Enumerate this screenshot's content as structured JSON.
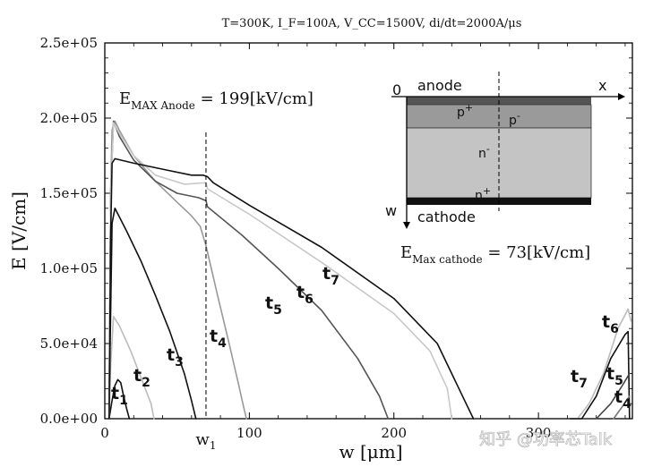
{
  "chart_data": {
    "type": "line",
    "title": "T=300K, I_F=100A, V_CC=1500V, di/dt=2000A/μs",
    "xlabel": "w [μm]",
    "ylabel": "E [V/cm]",
    "xlim": [
      0,
      365
    ],
    "ylim": [
      0,
      250000
    ],
    "x_ticks": [
      0,
      100,
      200,
      300
    ],
    "y_ticks": [
      0,
      50000,
      100000,
      150000,
      200000,
      250000
    ],
    "y_tick_labels": [
      "0.0e+00",
      "5.0e+04",
      "1.0e+05",
      "1.5e+05",
      "2.0e+05",
      "2.5e+05"
    ],
    "x_tick_labels": [
      "0",
      "100",
      "200",
      "300"
    ],
    "w1_label": "w",
    "w1_sub": "1",
    "w1_x": 70,
    "grid": false,
    "annotations": {
      "anode_pre": "E",
      "anode_sub": "MAX Anode",
      "anode_post": " = 199[kV/cm]",
      "cathode_pre": "E",
      "cathode_sub": "Max cathode",
      "cathode_post": " = 73[kV/cm]"
    },
    "series": [
      {
        "label": "t",
        "sub": "1",
        "color": "#111111",
        "width": 1.6,
        "points": [
          [
            3,
            0
          ],
          [
            5,
            12000
          ],
          [
            7,
            22000
          ],
          [
            9,
            26000
          ],
          [
            11,
            24000
          ],
          [
            13,
            15000
          ],
          [
            15,
            7000
          ],
          [
            17,
            0
          ]
        ]
      },
      {
        "label": "t",
        "sub": "2",
        "color": "#bbbbbb",
        "width": 1.6,
        "points": [
          [
            3,
            0
          ],
          [
            4,
            35000
          ],
          [
            6,
            68000
          ],
          [
            10,
            62000
          ],
          [
            18,
            45000
          ],
          [
            26,
            25000
          ],
          [
            32,
            10000
          ],
          [
            34,
            0
          ]
        ]
      },
      {
        "label": "t",
        "sub": "3",
        "color": "#111111",
        "width": 1.6,
        "points": [
          [
            3,
            0
          ],
          [
            4,
            70000
          ],
          [
            5,
            130000
          ],
          [
            7,
            140000
          ],
          [
            15,
            125000
          ],
          [
            25,
            105000
          ],
          [
            35,
            82000
          ],
          [
            45,
            58000
          ],
          [
            55,
            30000
          ],
          [
            60,
            12000
          ],
          [
            63,
            0
          ]
        ]
      },
      {
        "label": "t",
        "sub": "4",
        "color": "#999999",
        "width": 1.6,
        "points": [
          [
            3,
            0
          ],
          [
            4,
            150000
          ],
          [
            5,
            192000
          ],
          [
            7,
            198000
          ],
          [
            10,
            192000
          ],
          [
            20,
            175000
          ],
          [
            35,
            158000
          ],
          [
            50,
            144000
          ],
          [
            60,
            135000
          ],
          [
            66,
            128000
          ],
          [
            70,
            115000
          ],
          [
            78,
            82000
          ],
          [
            86,
            50000
          ],
          [
            92,
            25000
          ],
          [
            96,
            8000
          ],
          [
            98,
            0
          ]
        ]
      },
      {
        "label": "t",
        "sub": "5",
        "color": "#555555",
        "width": 1.6,
        "points": [
          [
            3,
            0
          ],
          [
            4,
            150000
          ],
          [
            6,
            198000
          ],
          [
            10,
            188000
          ],
          [
            20,
            172000
          ],
          [
            35,
            158000
          ],
          [
            50,
            150000
          ],
          [
            65,
            147000
          ],
          [
            70,
            145000
          ],
          [
            71,
            141000
          ],
          [
            95,
            122000
          ],
          [
            120,
            100000
          ],
          [
            150,
            72000
          ],
          [
            175,
            40000
          ],
          [
            190,
            15000
          ],
          [
            196,
            0
          ]
        ]
      },
      {
        "label": "t",
        "sub": "6",
        "color": "#c8c8c8",
        "width": 1.6,
        "points": [
          [
            3,
            0
          ],
          [
            4,
            150000
          ],
          [
            6,
            197000
          ],
          [
            10,
            190000
          ],
          [
            20,
            175000
          ],
          [
            35,
            162000
          ],
          [
            55,
            156000
          ],
          [
            70,
            157000
          ],
          [
            71,
            153000
          ],
          [
            100,
            136000
          ],
          [
            150,
            104000
          ],
          [
            200,
            70000
          ],
          [
            225,
            45000
          ],
          [
            237,
            20000
          ],
          [
            240,
            0
          ]
        ]
      },
      {
        "label": "t",
        "sub": "7",
        "color": "#111111",
        "width": 1.6,
        "points": [
          [
            3,
            0
          ],
          [
            4,
            120000
          ],
          [
            5,
            170000
          ],
          [
            7,
            173000
          ],
          [
            20,
            170000
          ],
          [
            40,
            166000
          ],
          [
            60,
            162000
          ],
          [
            68,
            162000
          ],
          [
            71,
            161000
          ],
          [
            75,
            157000
          ],
          [
            100,
            142000
          ],
          [
            150,
            114000
          ],
          [
            200,
            80000
          ],
          [
            230,
            50000
          ],
          [
            250,
            10000
          ],
          [
            255,
            0
          ]
        ]
      },
      {
        "label": "t",
        "sub": "6",
        "color": "#bbbbbb",
        "width": 1.6,
        "points": [
          [
            327,
            0
          ],
          [
            335,
            10000
          ],
          [
            345,
            30000
          ],
          [
            355,
            60000
          ],
          [
            362,
            73000
          ],
          [
            364,
            65000
          ]
        ]
      },
      {
        "label": "t",
        "sub": "7",
        "color": "#111111",
        "width": 1.6,
        "points": [
          [
            322,
            0
          ],
          [
            330,
            0
          ],
          [
            340,
            15000
          ],
          [
            350,
            40000
          ],
          [
            360,
            56000
          ],
          [
            362,
            58000
          ],
          [
            363,
            0
          ]
        ]
      },
      {
        "label": "t",
        "sub": "5",
        "color": "#444444",
        "width": 1.6,
        "points": [
          [
            340,
            0
          ],
          [
            350,
            10000
          ],
          [
            358,
            22000
          ],
          [
            363,
            30000
          ]
        ]
      },
      {
        "label": "t",
        "sub": "4",
        "color": "#777777",
        "width": 1.6,
        "points": [
          [
            352,
            0
          ],
          [
            358,
            8000
          ],
          [
            363,
            15000
          ]
        ]
      }
    ],
    "inset": {
      "origin_label": "0",
      "x_label": "x",
      "w_label": "w",
      "anode_label": "anode",
      "cathode_label": "cathode",
      "layers": [
        "p",
        "+",
        "p",
        "-",
        "n",
        "-",
        "n",
        "+"
      ]
    }
  },
  "watermark": "知乎 @功率芯Talk"
}
